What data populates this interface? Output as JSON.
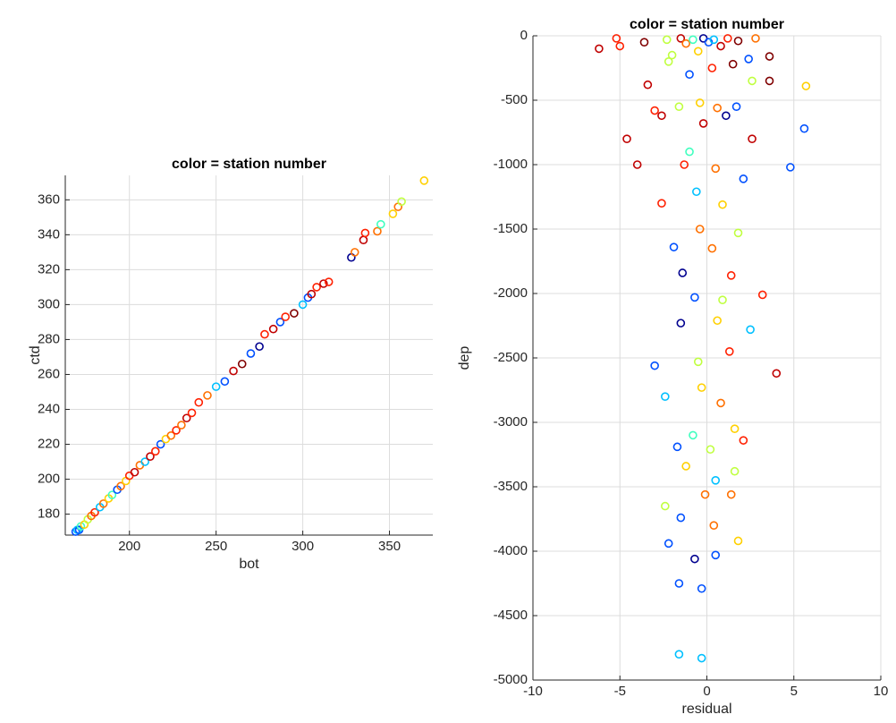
{
  "chart_data": [
    {
      "type": "scatter",
      "title": "color = station number",
      "x_label": "bot",
      "y_label": "ctd",
      "xlim": [
        163,
        375
      ],
      "ylim": [
        168,
        374
      ],
      "xticks": [
        200,
        250,
        300,
        350
      ],
      "yticks": [
        180,
        200,
        220,
        240,
        260,
        280,
        300,
        320,
        340,
        360
      ],
      "grid": true,
      "x": [
        169,
        170,
        171,
        172,
        174,
        176,
        178,
        180,
        183,
        185,
        188,
        190,
        193,
        195,
        198,
        200,
        203,
        206,
        209,
        212,
        215,
        218,
        221,
        224,
        227,
        230,
        233,
        236,
        240,
        245,
        250,
        255,
        260,
        265,
        270,
        275,
        278,
        283,
        287,
        290,
        295,
        300,
        303,
        305,
        308,
        312,
        315,
        328,
        330,
        335,
        336,
        343,
        345,
        352,
        355,
        357,
        370
      ],
      "y": [
        170,
        171,
        171,
        173,
        174,
        177,
        179,
        181,
        184,
        186,
        189,
        191,
        194,
        196,
        199,
        202,
        204,
        208,
        210,
        213,
        216,
        220,
        223,
        225,
        228,
        231,
        235,
        238,
        244,
        248,
        253,
        256,
        262,
        266,
        272,
        276,
        283,
        286,
        290,
        293,
        295,
        300,
        304,
        306,
        310,
        312,
        313,
        327,
        330,
        337,
        341,
        342,
        346,
        352,
        356,
        359,
        371
      ],
      "colors": [
        "#0050ff",
        "#00c0ff",
        "#0050ff",
        "#40ffbf",
        "#ffd000",
        "#c0ff40",
        "#ff7000",
        "#ff2000",
        "#00c0ff",
        "#ff7000",
        "#ffd000",
        "#40ffbf",
        "#0050ff",
        "#ff7000",
        "#ffd000",
        "#ff2000",
        "#c00000",
        "#ff7000",
        "#00c0ff",
        "#c00000",
        "#ff2000",
        "#0050ff",
        "#ffd000",
        "#ff7000",
        "#ff2000",
        "#ff7000",
        "#c00000",
        "#ff2000",
        "#ff2000",
        "#ff7000",
        "#00c0ff",
        "#0050ff",
        "#c00000",
        "#800000",
        "#0050ff",
        "#00008f",
        "#ff2000",
        "#c00000",
        "#0050ff",
        "#ff2000",
        "#800000",
        "#00c0ff",
        "#0050ff",
        "#c00000",
        "#ff2000",
        "#c00000",
        "#ff2000",
        "#00008f",
        "#ff7000",
        "#c00000",
        "#ff2000",
        "#ff7000",
        "#40ffbf",
        "#ffd000",
        "#ff7000",
        "#c0ff40",
        "#ffd000"
      ]
    },
    {
      "type": "scatter",
      "title": "color = station number",
      "x_label": "residual",
      "y_label": "dep",
      "xlim": [
        -10,
        10
      ],
      "ylim": [
        -5000,
        0
      ],
      "xticks": [
        -10,
        -5,
        0,
        5,
        10
      ],
      "yticks": [
        -5000,
        -4500,
        -4000,
        -3500,
        -3000,
        -2500,
        -2000,
        -1500,
        -1000,
        -500,
        0
      ],
      "grid": true,
      "x": [
        -6.2,
        -5.2,
        -5.0,
        -3.6,
        -2.3,
        -2.0,
        -1.5,
        -1.2,
        -0.8,
        -0.5,
        -0.2,
        0.1,
        0.4,
        0.8,
        1.2,
        1.8,
        2.4,
        2.8,
        3.6,
        -2.2,
        -1.0,
        0.3,
        1.5,
        2.6,
        3.6,
        5.7,
        -3.0,
        -2.6,
        -1.6,
        -0.4,
        0.6,
        1.7,
        -4.6,
        -3.4,
        -1.3,
        -0.2,
        1.1,
        2.6,
        5.6,
        -4.0,
        -1.0,
        0.5,
        2.1,
        4.8,
        -2.6,
        -0.6,
        0.9,
        -1.9,
        -0.4,
        1.8,
        -1.4,
        0.3,
        1.4,
        -0.7,
        0.9,
        3.2,
        -1.5,
        0.6,
        2.5,
        -3.0,
        -0.5,
        1.3,
        4.0,
        -2.4,
        -0.3,
        0.8,
        -0.8,
        1.6,
        2.1,
        -1.7,
        0.2,
        -1.2,
        0.5,
        1.6,
        -2.4,
        -0.1,
        1.4,
        -1.5,
        0.4,
        1.8,
        -2.2,
        -0.7,
        0.5,
        -1.6,
        -0.3,
        -1.6,
        -0.3
      ],
      "y": [
        -100,
        -20,
        -80,
        -50,
        -30,
        -150,
        -20,
        -60,
        -30,
        -120,
        -20,
        -50,
        -30,
        -80,
        -20,
        -40,
        -180,
        -20,
        -160,
        -200,
        -300,
        -250,
        -220,
        -350,
        -350,
        -390,
        -580,
        -620,
        -550,
        -520,
        -560,
        -550,
        -800,
        -380,
        -1000,
        -680,
        -620,
        -800,
        -720,
        -1000,
        -900,
        -1030,
        -1110,
        -1020,
        -1300,
        -1210,
        -1310,
        -1640,
        -1500,
        -1530,
        -1840,
        -1650,
        -1860,
        -2030,
        -2050,
        -2010,
        -2230,
        -2210,
        -2280,
        -2560,
        -2530,
        -2450,
        -2620,
        -2800,
        -2730,
        -2850,
        -3100,
        -3050,
        -3140,
        -3190,
        -3210,
        -3340,
        -3450,
        -3380,
        -3650,
        -3560,
        -3560,
        -3740,
        -3800,
        -3920,
        -3940,
        -4060,
        -4030,
        -4250,
        -4290,
        -4800,
        -4830
      ],
      "colors": [
        "#c00000",
        "#ff2000",
        "#ff2000",
        "#800000",
        "#c0ff40",
        "#c0ff40",
        "#c00000",
        "#ff7000",
        "#40ffbf",
        "#ffd000",
        "#00008f",
        "#0050ff",
        "#00c0ff",
        "#c00000",
        "#ff2000",
        "#800000",
        "#0050ff",
        "#ff7000",
        "#800000",
        "#c0ff40",
        "#0050ff",
        "#ff2000",
        "#800000",
        "#c0ff40",
        "#800000",
        "#ffd000",
        "#ff2000",
        "#c00000",
        "#c0ff40",
        "#ffd000",
        "#ff7000",
        "#0050ff",
        "#c00000",
        "#c00000",
        "#ff2000",
        "#c00000",
        "#00008f",
        "#c00000",
        "#0050ff",
        "#c00000",
        "#40ffbf",
        "#ff7000",
        "#0050ff",
        "#0050ff",
        "#ff2000",
        "#00c0ff",
        "#ffd000",
        "#0050ff",
        "#ff7000",
        "#c0ff40",
        "#00008f",
        "#ff7000",
        "#ff2000",
        "#0050ff",
        "#c0ff40",
        "#ff2000",
        "#00008f",
        "#ffd000",
        "#00c0ff",
        "#0050ff",
        "#c0ff40",
        "#ff2000",
        "#c00000",
        "#00c0ff",
        "#ffd000",
        "#ff7000",
        "#40ffbf",
        "#ffd000",
        "#ff2000",
        "#0050ff",
        "#c0ff40",
        "#ffd000",
        "#00c0ff",
        "#c0ff40",
        "#c0ff40",
        "#ff7000",
        "#ff7000",
        "#0050ff",
        "#ff7000",
        "#ffd000",
        "#0050ff",
        "#00008f",
        "#0050ff",
        "#0050ff",
        "#0050ff",
        "#00c0ff",
        "#00c0ff"
      ]
    }
  ]
}
